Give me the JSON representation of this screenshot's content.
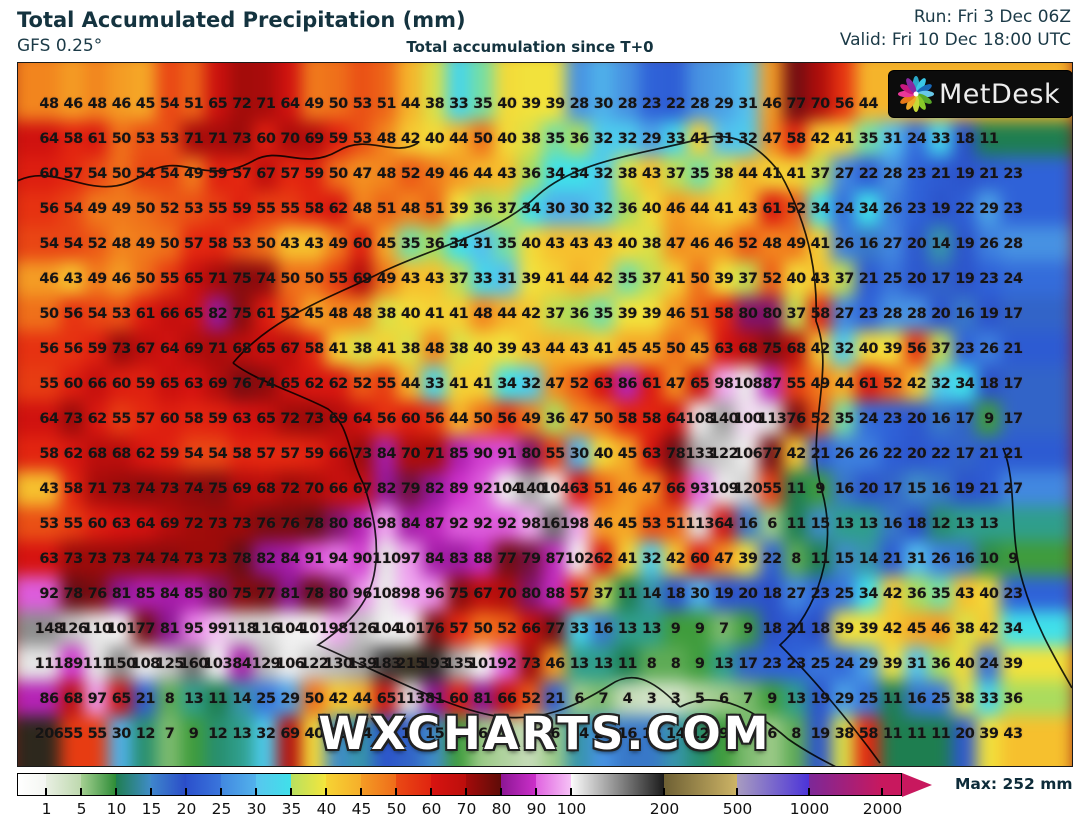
{
  "header": {
    "title": "Total Accumulated Precipitation (mm)",
    "model": "GFS 0.25°",
    "caption": "Total accumulation since T+0",
    "run": "Run: Fri 3 Dec 06Z",
    "valid": "Valid: Fri 10 Dec 18:00 UTC"
  },
  "logo": {
    "text": "MetDesk"
  },
  "watermark": "WXCHARTS.COM",
  "colorbar": {
    "tick_labels": [
      "1",
      "5",
      "10",
      "15",
      "20",
      "25",
      "30",
      "35",
      "40",
      "45",
      "50",
      "60",
      "70",
      "80",
      "90",
      "100",
      "200",
      "500",
      "1000",
      "2000"
    ],
    "max_label": "Max: 252 mm",
    "segment_colors": [
      [
        "#ffffff",
        "#f4f6f2"
      ],
      [
        "#e9efe3",
        "#bed9ae"
      ],
      [
        "#a5d092",
        "#2d8c36"
      ],
      [
        "#207e52",
        "#3f8cc8"
      ],
      [
        "#3f86cc",
        "#2a4cc8"
      ],
      [
        "#2b50cc",
        "#3a76dc"
      ],
      [
        "#4288e0",
        "#52b2ec"
      ],
      [
        "#58c6ee",
        "#40e0ea"
      ],
      [
        "#b8e060",
        "#f4e63c"
      ],
      [
        "#f6d434",
        "#f6ae2a"
      ],
      [
        "#f49c24",
        "#ef6c1a"
      ],
      [
        "#ea4a14",
        "#e02410"
      ],
      [
        "#d81410",
        "#bc0e0c"
      ],
      [
        "#a40b0a",
        "#5e0c08"
      ],
      [
        "#8c1694",
        "#cc30ca"
      ],
      [
        "#e063e0",
        "#f6c2f6"
      ],
      [
        "#fbfbfb",
        "#1c1c1c"
      ],
      [
        "#6e6034",
        "#cdb466"
      ],
      [
        "#a89cc0",
        "#4c34d8"
      ],
      [
        "#7c2898",
        "#c8185e"
      ],
      [
        "#c8185e",
        "#c8185e"
      ]
    ],
    "arrow_color": "#c8185e"
  },
  "colormap_anchors": [
    [
      0,
      "#ffffff"
    ],
    [
      1,
      "#eaf0e4"
    ],
    [
      4,
      "#c6dcb8"
    ],
    [
      6,
      "#9cca88"
    ],
    [
      9,
      "#3f9c3c"
    ],
    [
      11,
      "#1e7e50"
    ],
    [
      13,
      "#2f9e8c"
    ],
    [
      15,
      "#3f8cc8"
    ],
    [
      18,
      "#2b50c8"
    ],
    [
      23,
      "#2f62d8"
    ],
    [
      28,
      "#4792e2"
    ],
    [
      31,
      "#53c0ee"
    ],
    [
      34,
      "#40e0ea"
    ],
    [
      36,
      "#aadc5e"
    ],
    [
      39,
      "#f2e23c"
    ],
    [
      43,
      "#f6c02e"
    ],
    [
      47,
      "#f39020"
    ],
    [
      52,
      "#ec5a16"
    ],
    [
      57,
      "#e42810"
    ],
    [
      63,
      "#d61310"
    ],
    [
      68,
      "#ba0e0c"
    ],
    [
      73,
      "#9c0b0a"
    ],
    [
      78,
      "#670d14"
    ],
    [
      81,
      "#8c1694"
    ],
    [
      85,
      "#ad1fae"
    ],
    [
      89,
      "#cc30ca"
    ],
    [
      93,
      "#e26ae2"
    ],
    [
      98,
      "#f0a8f0"
    ],
    [
      101,
      "#f6f6f6"
    ],
    [
      112,
      "#e4e4e4"
    ],
    [
      125,
      "#c4c4c4"
    ],
    [
      140,
      "#a2a2a2"
    ],
    [
      160,
      "#6e6e6e"
    ],
    [
      185,
      "#3a3a3a"
    ],
    [
      200,
      "#26221a"
    ],
    [
      260,
      "#6e6034"
    ],
    [
      350,
      "#a8924c"
    ],
    [
      480,
      "#cdb466"
    ],
    [
      520,
      "#a89cc0"
    ],
    [
      700,
      "#8070c0"
    ],
    [
      1000,
      "#4c34d8"
    ],
    [
      1200,
      "#7c2898"
    ],
    [
      1600,
      "#a8207a"
    ],
    [
      2000,
      "#c8185e"
    ],
    [
      9999,
      "#c8185e"
    ]
  ],
  "chart_data": {
    "type": "heatmap",
    "title": "Total Accumulated Precipitation (mm)",
    "units": "mm",
    "max_value": 252,
    "legend_values": [
      1,
      5,
      10,
      15,
      20,
      25,
      30,
      35,
      40,
      45,
      50,
      60,
      70,
      80,
      90,
      100,
      200,
      500,
      1000,
      2000
    ],
    "value_grid_rows": [
      [
        48,
        46,
        48,
        46,
        45,
        54,
        51,
        65,
        72,
        71,
        64,
        49,
        50,
        53,
        51,
        44,
        38,
        33,
        35,
        40,
        39,
        39,
        28,
        30,
        28,
        23,
        22,
        28,
        29,
        31,
        46,
        77,
        70,
        56,
        44
      ],
      [
        64,
        58,
        61,
        50,
        53,
        53,
        71,
        71,
        73,
        60,
        70,
        69,
        59,
        53,
        48,
        42,
        40,
        44,
        50,
        40,
        38,
        35,
        36,
        32,
        32,
        29,
        33,
        41,
        31,
        32,
        47,
        58,
        42,
        41,
        35,
        31,
        24,
        33,
        18,
        11
      ],
      [
        60,
        57,
        54,
        50,
        54,
        54,
        49,
        59,
        57,
        67,
        57,
        59,
        50,
        47,
        48,
        52,
        49,
        46,
        44,
        43,
        36,
        34,
        34,
        32,
        38,
        43,
        37,
        35,
        38,
        44,
        41,
        41,
        37,
        27,
        22,
        28,
        23,
        21,
        19,
        21,
        23
      ],
      [
        56,
        54,
        49,
        49,
        50,
        52,
        53,
        55,
        59,
        55,
        55,
        58,
        62,
        48,
        51,
        48,
        51,
        39,
        36,
        37,
        34,
        30,
        30,
        32,
        36,
        40,
        46,
        44,
        41,
        43,
        61,
        52,
        34,
        24,
        34,
        26,
        23,
        19,
        22,
        29,
        23
      ],
      [
        54,
        54,
        52,
        48,
        49,
        50,
        57,
        58,
        53,
        50,
        43,
        43,
        49,
        60,
        45,
        35,
        36,
        34,
        31,
        35,
        40,
        43,
        43,
        43,
        40,
        38,
        47,
        46,
        46,
        52,
        48,
        49,
        41,
        26,
        16,
        27,
        20,
        14,
        19,
        26,
        28
      ],
      [
        46,
        43,
        49,
        46,
        50,
        55,
        65,
        71,
        75,
        74,
        50,
        50,
        55,
        69,
        49,
        43,
        43,
        37,
        33,
        31,
        39,
        41,
        44,
        42,
        35,
        37,
        41,
        50,
        39,
        37,
        52,
        40,
        43,
        37,
        21,
        25,
        20,
        17,
        19,
        23,
        24
      ],
      [
        50,
        56,
        54,
        53,
        61,
        66,
        65,
        82,
        75,
        61,
        52,
        45,
        48,
        48,
        38,
        40,
        41,
        41,
        48,
        44,
        42,
        37,
        36,
        35,
        39,
        39,
        46,
        51,
        58,
        80,
        80,
        37,
        58,
        27,
        23,
        28,
        28,
        20,
        16,
        19,
        17
      ],
      [
        56,
        56,
        59,
        73,
        67,
        64,
        69,
        71,
        68,
        65,
        67,
        58,
        41,
        38,
        41,
        38,
        48,
        38,
        40,
        39,
        43,
        44,
        43,
        41,
        45,
        45,
        50,
        45,
        63,
        68,
        75,
        68,
        42,
        32,
        40,
        39,
        56,
        37,
        23,
        26,
        21
      ],
      [
        55,
        60,
        66,
        60,
        59,
        65,
        63,
        69,
        76,
        74,
        65,
        62,
        62,
        52,
        55,
        44,
        33,
        41,
        41,
        34,
        32,
        47,
        52,
        63,
        86,
        61,
        47,
        65,
        98,
        108,
        87,
        55,
        49,
        44,
        61,
        52,
        42,
        32,
        34,
        18,
        17
      ],
      [
        64,
        73,
        62,
        55,
        57,
        60,
        58,
        59,
        63,
        65,
        72,
        73,
        69,
        64,
        56,
        60,
        56,
        44,
        50,
        56,
        49,
        36,
        47,
        50,
        58,
        58,
        64,
        108,
        140,
        100,
        113,
        76,
        52,
        35,
        24,
        23,
        20,
        16,
        17,
        9,
        17
      ],
      [
        58,
        62,
        68,
        68,
        62,
        59,
        54,
        54,
        58,
        57,
        57,
        59,
        66,
        73,
        84,
        70,
        71,
        85,
        90,
        91,
        80,
        55,
        30,
        40,
        45,
        63,
        78,
        133,
        122,
        106,
        77,
        42,
        21,
        26,
        26,
        22,
        20,
        22,
        17,
        21,
        21
      ],
      [
        43,
        58,
        71,
        73,
        74,
        73,
        74,
        75,
        69,
        68,
        72,
        70,
        66,
        67,
        82,
        79,
        82,
        89,
        92,
        104,
        140,
        104,
        63,
        51,
        46,
        47,
        66,
        93,
        109,
        120,
        55,
        11,
        9,
        16,
        20,
        17,
        15,
        16,
        19,
        21,
        27
      ],
      [
        53,
        55,
        60,
        63,
        64,
        69,
        72,
        73,
        73,
        76,
        76,
        78,
        80,
        86,
        98,
        84,
        87,
        92,
        92,
        92,
        98,
        161,
        98,
        46,
        45,
        53,
        51,
        113,
        64,
        16,
        6,
        11,
        15,
        13,
        13,
        16,
        18,
        12,
        13,
        13
      ],
      [
        63,
        73,
        73,
        73,
        74,
        74,
        73,
        73,
        78,
        82,
        84,
        91,
        94,
        90,
        110,
        97,
        84,
        83,
        88,
        77,
        79,
        87,
        102,
        62,
        41,
        32,
        42,
        60,
        47,
        39,
        22,
        8,
        11,
        15,
        14,
        21,
        31,
        26,
        16,
        10,
        9
      ],
      [
        92,
        78,
        76,
        81,
        85,
        84,
        85,
        80,
        75,
        77,
        81,
        78,
        80,
        96,
        108,
        98,
        96,
        75,
        67,
        70,
        80,
        88,
        57,
        37,
        11,
        14,
        18,
        30,
        19,
        20,
        18,
        27,
        23,
        25,
        34,
        42,
        36,
        35,
        43,
        40,
        23
      ],
      [
        148,
        126,
        110,
        101,
        77,
        81,
        95,
        99,
        118,
        116,
        104,
        101,
        98,
        126,
        104,
        101,
        76,
        57,
        50,
        52,
        66,
        77,
        33,
        16,
        13,
        13,
        9,
        9,
        7,
        9,
        18,
        21,
        18,
        39,
        39,
        42,
        45,
        46,
        38,
        42,
        34
      ],
      [
        111,
        89,
        111,
        150,
        108,
        125,
        160,
        103,
        84,
        129,
        106,
        122,
        130,
        139,
        183,
        215,
        193,
        135,
        101,
        92,
        73,
        46,
        13,
        13,
        11,
        8,
        8,
        9,
        13,
        17,
        23,
        23,
        25,
        24,
        29,
        39,
        31,
        36,
        40,
        24,
        39
      ],
      [
        86,
        68,
        97,
        65,
        21,
        8,
        13,
        11,
        14,
        25,
        29,
        50,
        42,
        44,
        65,
        113,
        81,
        60,
        81,
        66,
        52,
        21,
        6,
        7,
        4,
        3,
        3,
        5,
        6,
        7,
        9,
        13,
        19,
        29,
        25,
        11,
        16,
        25,
        38,
        33,
        36
      ],
      [
        206,
        55,
        55,
        30,
        12,
        7,
        9,
        12,
        13,
        32,
        69,
        40,
        15,
        14,
        19,
        17,
        15,
        9,
        6,
        5,
        4,
        6,
        14,
        28,
        16,
        16,
        14,
        12,
        9,
        7,
        6,
        8,
        19,
        38,
        58,
        11,
        11,
        11,
        20,
        39,
        43
      ]
    ]
  }
}
